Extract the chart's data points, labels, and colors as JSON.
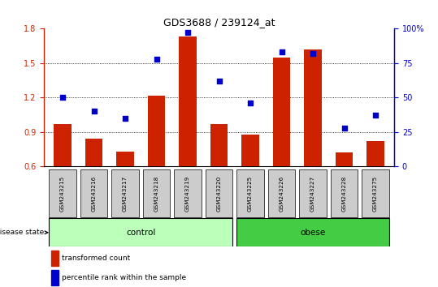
{
  "title": "GDS3688 / 239124_at",
  "categories": [
    "GSM243215",
    "GSM243216",
    "GSM243217",
    "GSM243218",
    "GSM243219",
    "GSM243220",
    "GSM243225",
    "GSM243226",
    "GSM243227",
    "GSM243228",
    "GSM243275"
  ],
  "red_bars": [
    0.97,
    0.84,
    0.73,
    1.22,
    1.73,
    0.97,
    0.88,
    1.55,
    1.62,
    0.72,
    0.82
  ],
  "blue_dots": [
    50,
    40,
    35,
    78,
    97,
    62,
    46,
    83,
    82,
    28,
    37
  ],
  "ylim_left": [
    0.6,
    1.8
  ],
  "ylim_right": [
    0,
    100
  ],
  "yticks_left": [
    0.6,
    0.9,
    1.2,
    1.5,
    1.8
  ],
  "yticks_right": [
    0,
    25,
    50,
    75,
    100
  ],
  "bar_color": "#cc2200",
  "dot_color": "#0000cc",
  "control_color": "#bbffbb",
  "obese_color": "#44cc44",
  "label_bg_color": "#cccccc",
  "grid_color": "#000000",
  "legend_red_label": "transformed count",
  "legend_blue_label": "percentile rank within the sample",
  "disease_state_label": "disease state",
  "control_label": "control",
  "obese_label": "obese",
  "n_control": 6,
  "n_obese": 5
}
